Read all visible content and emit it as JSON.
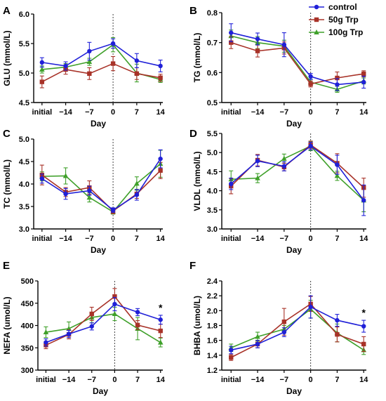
{
  "legend": [
    {
      "name": "control",
      "color": "#2020d8",
      "marker": "circle"
    },
    {
      "name": "50g Trp",
      "color": "#a83228",
      "marker": "square"
    },
    {
      "name": "100g Trp",
      "color": "#3fa02a",
      "marker": "triangle"
    }
  ],
  "chart_data": [
    {
      "panel": "A",
      "type": "line",
      "ylabel": "GLU (mmol/L)",
      "xlabel": "Day",
      "categories": [
        "initial",
        "−14",
        "−7",
        "0",
        "7",
        "14"
      ],
      "ylim": [
        4.5,
        6.0
      ],
      "yticks": [
        "4.5",
        "5.0",
        "5.5",
        "6.0"
      ],
      "series": [
        {
          "name": "control",
          "values": [
            5.18,
            5.12,
            5.37,
            5.5,
            5.21,
            5.12
          ],
          "err": [
            0.08,
            0.07,
            0.15,
            0.08,
            0.12,
            0.1
          ]
        },
        {
          "name": "50g Trp",
          "values": [
            4.85,
            5.06,
            4.99,
            5.16,
            4.99,
            4.92
          ],
          "err": [
            0.1,
            0.08,
            0.1,
            0.12,
            0.1,
            0.06
          ]
        },
        {
          "name": "100g Trp",
          "values": [
            5.06,
            5.1,
            5.19,
            5.48,
            5.0,
            4.89
          ],
          "err": [
            0.06,
            0.06,
            0.06,
            0.12,
            0.15,
            0.05
          ]
        }
      ],
      "annotations": []
    },
    {
      "panel": "B",
      "type": "line",
      "ylabel": "TG (mmol/L)",
      "xlabel": "Day",
      "categories": [
        "initial",
        "−14",
        "−7",
        "0",
        "7",
        "14"
      ],
      "ylim": [
        0.5,
        0.8
      ],
      "yticks": [
        "0.5",
        "0.6",
        "0.7",
        "0.8"
      ],
      "series": [
        {
          "name": "control",
          "values": [
            0.733,
            0.712,
            0.693,
            0.587,
            0.56,
            0.568
          ],
          "err": [
            0.03,
            0.02,
            0.04,
            0.01,
            0.02,
            0.02
          ]
        },
        {
          "name": "50g Trp",
          "values": [
            0.7,
            0.672,
            0.682,
            0.562,
            0.582,
            0.596
          ],
          "err": [
            0.02,
            0.02,
            0.02,
            0.01,
            0.02,
            0.01
          ]
        },
        {
          "name": "100g Trp",
          "values": [
            0.722,
            0.7,
            0.688,
            0.568,
            0.544,
            0.572
          ],
          "err": [
            0.02,
            0.02,
            0.02,
            0.01,
            0.01,
            0.01
          ]
        }
      ],
      "annotations": []
    },
    {
      "panel": "C",
      "type": "line",
      "ylabel": "TC (mmol/L)",
      "xlabel": "Day",
      "categories": [
        "initial",
        "−14",
        "−7",
        "0",
        "7",
        "14"
      ],
      "ylim": [
        3.0,
        5.0
      ],
      "yticks": [
        "3.0",
        "3.5",
        "4.0",
        "4.5",
        "5.0"
      ],
      "series": [
        {
          "name": "control",
          "values": [
            4.12,
            3.78,
            3.85,
            3.42,
            3.76,
            4.56
          ],
          "err": [
            0.1,
            0.12,
            0.1,
            0.05,
            0.12,
            0.2
          ]
        },
        {
          "name": "50g Trp",
          "values": [
            4.2,
            3.82,
            3.92,
            3.4,
            3.78,
            4.3
          ],
          "err": [
            0.22,
            0.1,
            0.15,
            0.06,
            0.1,
            0.18
          ]
        },
        {
          "name": "100g Trp",
          "values": [
            4.17,
            4.18,
            3.7,
            3.38,
            4.01,
            4.45
          ],
          "err": [
            0.1,
            0.18,
            0.1,
            0.05,
            0.15,
            0.3
          ]
        }
      ],
      "annotations": []
    },
    {
      "panel": "D",
      "type": "line",
      "ylabel": "VLDL (mmol/L)",
      "xlabel": "Day",
      "categories": [
        "initial",
        "−14",
        "−7",
        "0",
        "7",
        "14"
      ],
      "ylim": [
        3.0,
        5.5
      ],
      "yticks": [
        "3.0",
        "3.5",
        "4.0",
        "4.5",
        "5.0",
        "5.5"
      ],
      "series": [
        {
          "name": "control",
          "values": [
            4.18,
            4.78,
            4.64,
            5.17,
            4.68,
            3.75
          ],
          "err": [
            0.15,
            0.15,
            0.12,
            0.1,
            0.25,
            0.4
          ]
        },
        {
          "name": "50g Trp",
          "values": [
            4.12,
            4.8,
            4.62,
            5.2,
            4.72,
            4.08
          ],
          "err": [
            0.2,
            0.15,
            0.1,
            0.1,
            0.25,
            0.25
          ]
        },
        {
          "name": "100g Trp",
          "values": [
            4.3,
            4.33,
            4.84,
            5.17,
            4.39,
            3.75
          ],
          "err": [
            0.22,
            0.12,
            0.12,
            0.12,
            0.12,
            0.3
          ]
        }
      ],
      "annotations": []
    },
    {
      "panel": "E",
      "type": "line",
      "ylabel": "NEFA (umol/L)",
      "xlabel": "Day",
      "categories": [
        "initial",
        "−14",
        "−7",
        "0",
        "7",
        "14"
      ],
      "ylim": [
        300,
        500
      ],
      "yticks": [
        "300",
        "350",
        "400",
        "450",
        "500"
      ],
      "series": [
        {
          "name": "control",
          "values": [
            362,
            381,
            398,
            448,
            430,
            413
          ],
          "err": [
            8,
            8,
            8,
            15,
            8,
            10
          ]
        },
        {
          "name": "50g Trp",
          "values": [
            356,
            380,
            426,
            465,
            401,
            388
          ],
          "err": [
            8,
            10,
            15,
            18,
            10,
            15
          ]
        },
        {
          "name": "100g Trp",
          "values": [
            385,
            393,
            418,
            426,
            393,
            362
          ],
          "err": [
            12,
            15,
            12,
            15,
            25,
            10
          ]
        }
      ],
      "annotations": [
        {
          "text": "*",
          "category": "14"
        }
      ]
    },
    {
      "panel": "F",
      "type": "line",
      "ylabel": "BHBA (umol/L)",
      "xlabel": "Day",
      "categories": [
        "initial",
        "−14",
        "−7",
        "0",
        "7",
        "14"
      ],
      "ylim": [
        1.2,
        2.4
      ],
      "yticks": [
        "1.2",
        "1.4",
        "1.6",
        "1.8",
        "2.0",
        "2.2",
        "2.4"
      ],
      "series": [
        {
          "name": "control",
          "values": [
            1.47,
            1.55,
            1.71,
            2.05,
            1.87,
            1.79
          ],
          "err": [
            0.05,
            0.05,
            0.06,
            0.15,
            0.08,
            0.08
          ]
        },
        {
          "name": "50g Trp",
          "values": [
            1.37,
            1.55,
            1.85,
            2.09,
            1.68,
            1.55
          ],
          "err": [
            0.04,
            0.05,
            0.18,
            0.1,
            0.1,
            0.1
          ]
        },
        {
          "name": "100g Trp",
          "values": [
            1.5,
            1.65,
            1.75,
            2.02,
            1.7,
            1.47
          ],
          "err": [
            0.05,
            0.06,
            0.05,
            0.12,
            0.12,
            0.06
          ]
        }
      ],
      "annotations": [
        {
          "text": "*",
          "category": "14"
        }
      ]
    }
  ]
}
